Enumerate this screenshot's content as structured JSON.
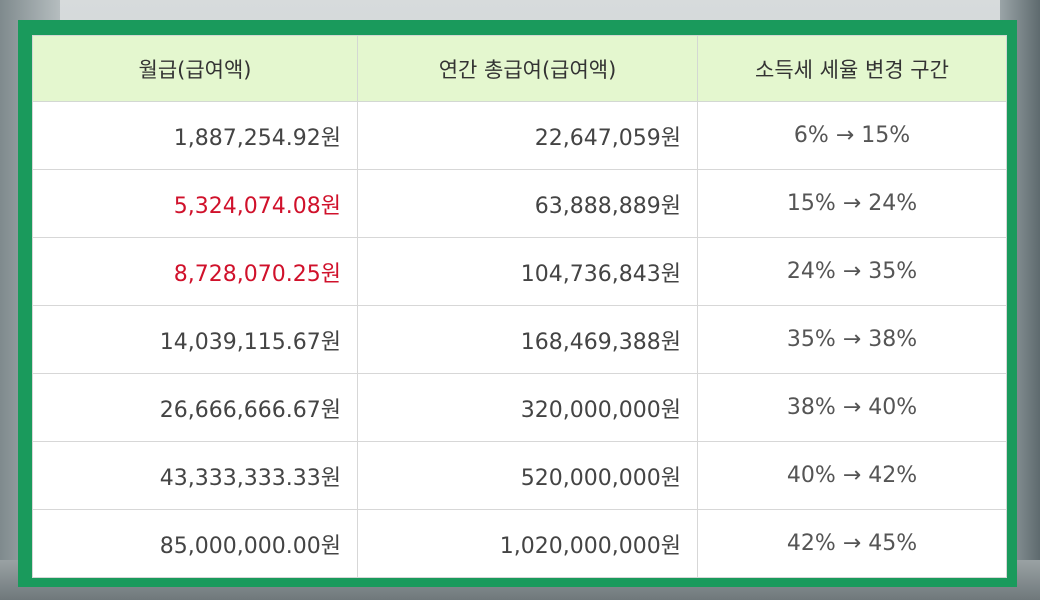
{
  "headers": [
    "월급(급여액)",
    "연간 총급여(급여액)",
    "소득세 세율 변경 구간"
  ],
  "rows": [
    {
      "monthly": "1,887,254.92원",
      "annual": "22,647,059원",
      "bracket": "6% → 15%",
      "highlight": false
    },
    {
      "monthly": "5,324,074.08원",
      "annual": "63,888,889원",
      "bracket": "15% → 24%",
      "highlight": true
    },
    {
      "monthly": "8,728,070.25원",
      "annual": "104,736,843원",
      "bracket": "24% → 35%",
      "highlight": true
    },
    {
      "monthly": "14,039,115.67원",
      "annual": "168,469,388원",
      "bracket": "35% → 38%",
      "highlight": false
    },
    {
      "monthly": "26,666,666.67원",
      "annual": "320,000,000원",
      "bracket": "38% → 40%",
      "highlight": false
    },
    {
      "monthly": "43,333,333.33원",
      "annual": "520,000,000원",
      "bracket": "40% → 42%",
      "highlight": false
    },
    {
      "monthly": "85,000,000.00원",
      "annual": "1,020,000,000원",
      "bracket": "42% → 45%",
      "highlight": false
    }
  ],
  "colors": {
    "frame": "#1a9a5c",
    "header_bg": "#e4f7cf",
    "highlight_text": "#d0112b"
  }
}
